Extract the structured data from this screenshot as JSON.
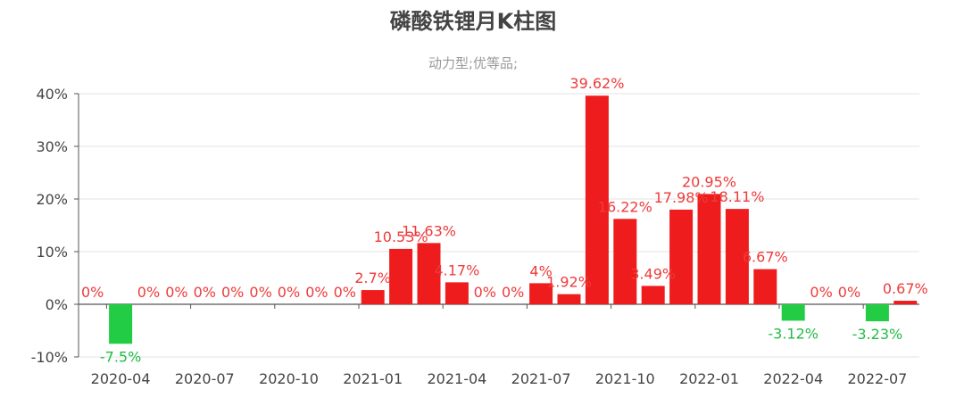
{
  "chart_data": {
    "type": "bar",
    "title": "磷酸铁锂月K柱图",
    "subtitle": "动力型;优等品;",
    "ylim": [
      -10,
      40
    ],
    "y_ticks": [
      "-10%",
      "0%",
      "10%",
      "20%",
      "30%",
      "40%"
    ],
    "y_tick_values": [
      -10,
      0,
      10,
      20,
      30,
      40
    ],
    "x_tick_labels": [
      "2020-04",
      "2020-07",
      "2020-10",
      "2021-01",
      "2021-04",
      "2021-07",
      "2021-10",
      "2022-01",
      "2022-04",
      "2022-07"
    ],
    "x_tick_categories": [
      "2020-04",
      "2020-07",
      "2020-10",
      "2021-01",
      "2021-04",
      "2021-07",
      "2021-10",
      "2022-01",
      "2022-04",
      "2022-07"
    ],
    "grid": true,
    "colors": {
      "positive": "#ee1c1c",
      "negative": "#22cc44",
      "label_positive": "#ee3b3b",
      "label_negative": "#22bb44"
    },
    "categories": [
      "2020-03",
      "2020-04",
      "2020-05",
      "2020-06",
      "2020-07",
      "2020-08",
      "2020-09",
      "2020-10",
      "2020-11",
      "2020-12",
      "2021-01",
      "2021-02",
      "2021-03",
      "2021-04",
      "2021-05",
      "2021-06",
      "2021-07",
      "2021-08",
      "2021-09",
      "2021-10",
      "2021-11",
      "2021-12",
      "2022-01",
      "2022-02",
      "2022-03",
      "2022-04",
      "2022-05",
      "2022-06",
      "2022-07",
      "2022-08"
    ],
    "values": [
      0,
      -7.5,
      0,
      0,
      0,
      0,
      0,
      0,
      0,
      0,
      2.7,
      10.53,
      11.63,
      4.17,
      0,
      0,
      4,
      1.92,
      39.62,
      16.22,
      3.49,
      17.98,
      20.95,
      18.11,
      6.67,
      -3.12,
      0,
      0,
      -3.23,
      0.67
    ],
    "labels": [
      "0%",
      "-7.5%",
      "0%",
      "0%",
      "0%",
      "0%",
      "0%",
      "0%",
      "0%",
      "0%",
      "2.7%",
      "10.53%",
      "11.63%",
      "4.17%",
      "0%",
      "0%",
      "4%",
      "1.92%",
      "39.62%",
      "16.22%",
      "3.49%",
      "17.98%",
      "20.95%",
      "18.11%",
      "6.67%",
      "-3.12%",
      "0%",
      "0%",
      "-3.23%",
      "0.67%"
    ]
  }
}
